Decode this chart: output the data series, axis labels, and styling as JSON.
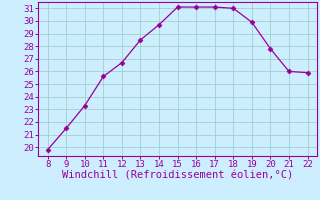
{
  "x": [
    8,
    9,
    10,
    11,
    12,
    13,
    14,
    15,
    16,
    17,
    18,
    19,
    20,
    21,
    22
  ],
  "y": [
    19.8,
    21.5,
    23.3,
    25.6,
    26.7,
    28.5,
    29.7,
    31.1,
    31.1,
    31.1,
    31.0,
    29.9,
    27.8,
    26.0,
    25.9
  ],
  "line_color": "#990099",
  "marker_color": "#990099",
  "bg_color": "#cceeff",
  "grid_color": "#99ccbb",
  "xlabel": "Windchill (Refroidissement éolien,°C)",
  "xlabel_color": "#990099",
  "tick_color": "#990099",
  "spine_color": "#990099",
  "xlim": [
    7.5,
    22.5
  ],
  "ylim": [
    19.3,
    31.5
  ],
  "xticks": [
    8,
    9,
    10,
    11,
    12,
    13,
    14,
    15,
    16,
    17,
    18,
    19,
    20,
    21,
    22
  ],
  "yticks": [
    20,
    21,
    22,
    23,
    24,
    25,
    26,
    27,
    28,
    29,
    30,
    31
  ],
  "xlabel_fontsize": 7.5,
  "tick_fontsize": 6.5,
  "marker_size": 2.5,
  "linewidth": 0.9
}
